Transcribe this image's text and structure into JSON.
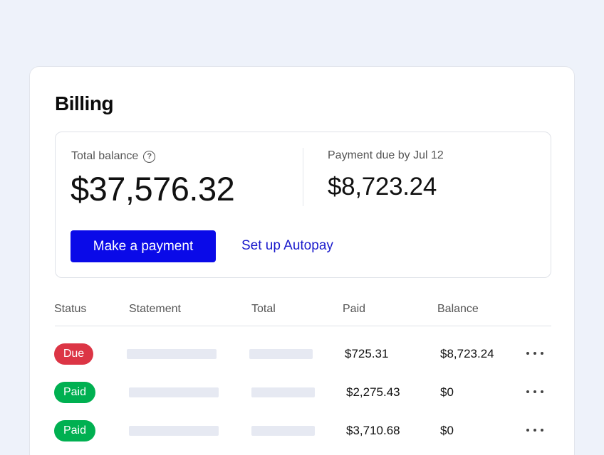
{
  "billing": {
    "title": "Billing",
    "total_balance_label": "Total balance",
    "total_balance": "$37,576.32",
    "payment_due_label": "Payment due by Jul 12",
    "payment_due": "$8,723.24",
    "make_payment_label": "Make a payment",
    "autopay_label": "Set up Autopay"
  },
  "table": {
    "columns": [
      "Status",
      "Statement",
      "Total",
      "Paid",
      "Balance"
    ],
    "rows": [
      {
        "status": "Due",
        "paid": "$725.31",
        "balance": "$8,723.24"
      },
      {
        "status": "Paid",
        "paid": "$2,275.43",
        "balance": "$0"
      },
      {
        "status": "Paid",
        "paid": "$3,710.68",
        "balance": "$0"
      }
    ]
  },
  "colors": {
    "primary": "#0a0ae8",
    "link": "#1a1acc",
    "due": "#dc3545",
    "paid": "#00b051",
    "background": "#eef2fa"
  },
  "icons": {
    "help": "question-circle-icon",
    "more": "more-horizontal-icon"
  }
}
